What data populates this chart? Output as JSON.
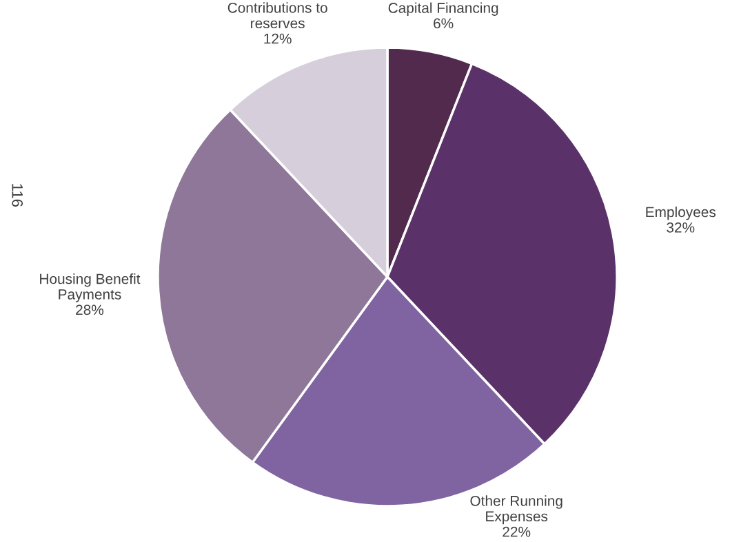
{
  "chart_data": {
    "type": "pie",
    "categories": [
      "Capital Financing",
      "Employees",
      "Other Running\nExpenses",
      "Housing Benefit\nPayments",
      "Contributions to\nreserves"
    ],
    "values": [
      6,
      32,
      22,
      28,
      12
    ],
    "value_labels": [
      "6%",
      "32%",
      "22%",
      "28%",
      "12%"
    ],
    "colors": [
      "#512a4e",
      "#5a3168",
      "#8064a2",
      "#8f7799",
      "#d6ceda"
    ],
    "annotations": [
      "116"
    ],
    "legend": false
  }
}
